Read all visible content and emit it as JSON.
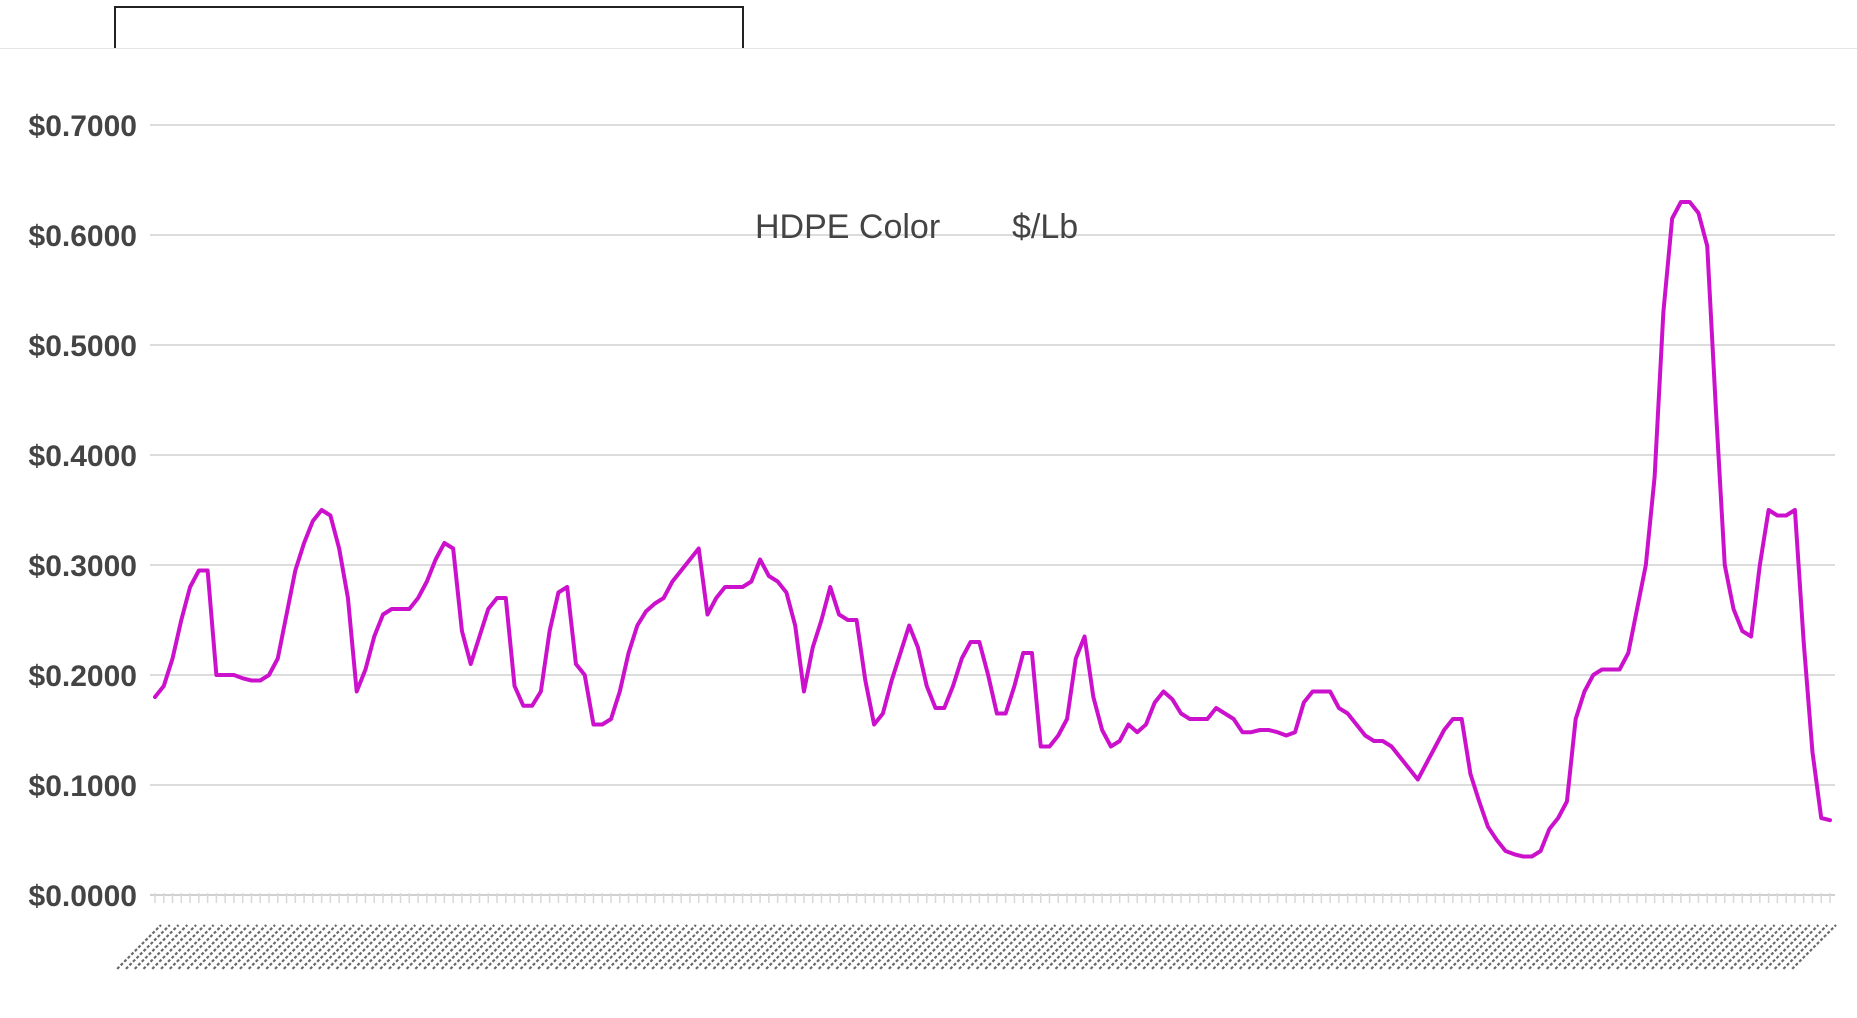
{
  "chart_data": {
    "type": "line",
    "title_parts": [
      "HDPE Color",
      "$/Lb"
    ],
    "xlabel": "",
    "ylabel": "",
    "ylim": [
      0,
      0.7
    ],
    "yticks": [
      {
        "value": 0.0,
        "label": "$0.0000"
      },
      {
        "value": 0.1,
        "label": "$0.1000"
      },
      {
        "value": 0.2,
        "label": "$0.2000"
      },
      {
        "value": 0.3,
        "label": "$0.3000"
      },
      {
        "value": 0.4,
        "label": "$0.4000"
      },
      {
        "value": 0.5,
        "label": "$0.5000"
      },
      {
        "value": 0.6,
        "label": "$0.6000"
      },
      {
        "value": 0.7,
        "label": "$0.7000"
      }
    ],
    "grid": true,
    "legend": "none",
    "x_tick_labels_note": "dense rotated date labels (illegible), one per data point",
    "series": [
      {
        "color": "#cc11cc",
        "values": [
          0.18,
          0.19,
          0.215,
          0.25,
          0.28,
          0.295,
          0.295,
          0.2,
          0.2,
          0.2,
          0.197,
          0.195,
          0.195,
          0.2,
          0.215,
          0.255,
          0.295,
          0.32,
          0.34,
          0.35,
          0.345,
          0.315,
          0.27,
          0.185,
          0.205,
          0.235,
          0.255,
          0.26,
          0.26,
          0.26,
          0.27,
          0.285,
          0.305,
          0.32,
          0.315,
          0.24,
          0.21,
          0.235,
          0.26,
          0.27,
          0.27,
          0.19,
          0.172,
          0.172,
          0.185,
          0.24,
          0.275,
          0.28,
          0.21,
          0.2,
          0.155,
          0.155,
          0.16,
          0.185,
          0.22,
          0.245,
          0.258,
          0.265,
          0.27,
          0.285,
          0.295,
          0.305,
          0.315,
          0.255,
          0.27,
          0.28,
          0.28,
          0.28,
          0.285,
          0.305,
          0.29,
          0.285,
          0.275,
          0.245,
          0.185,
          0.225,
          0.25,
          0.28,
          0.255,
          0.25,
          0.25,
          0.195,
          0.155,
          0.165,
          0.195,
          0.22,
          0.245,
          0.225,
          0.19,
          0.17,
          0.17,
          0.19,
          0.215,
          0.23,
          0.23,
          0.2,
          0.165,
          0.165,
          0.19,
          0.22,
          0.22,
          0.135,
          0.135,
          0.145,
          0.16,
          0.215,
          0.235,
          0.18,
          0.15,
          0.135,
          0.14,
          0.155,
          0.148,
          0.155,
          0.175,
          0.185,
          0.178,
          0.165,
          0.16,
          0.16,
          0.16,
          0.17,
          0.165,
          0.16,
          0.148,
          0.148,
          0.15,
          0.15,
          0.148,
          0.145,
          0.148,
          0.175,
          0.185,
          0.185,
          0.185,
          0.17,
          0.165,
          0.155,
          0.145,
          0.14,
          0.14,
          0.135,
          0.125,
          0.115,
          0.105,
          0.12,
          0.135,
          0.15,
          0.16,
          0.16,
          0.11,
          0.085,
          0.062,
          0.05,
          0.04,
          0.037,
          0.035,
          0.035,
          0.04,
          0.06,
          0.07,
          0.085,
          0.16,
          0.185,
          0.2,
          0.205,
          0.205,
          0.205,
          0.22,
          0.26,
          0.3,
          0.38,
          0.53,
          0.615,
          0.63,
          0.63,
          0.62,
          0.59,
          0.44,
          0.3,
          0.26,
          0.24,
          0.235,
          0.3,
          0.35,
          0.345,
          0.345,
          0.35,
          0.23,
          0.13,
          0.07,
          0.068
        ]
      }
    ]
  }
}
